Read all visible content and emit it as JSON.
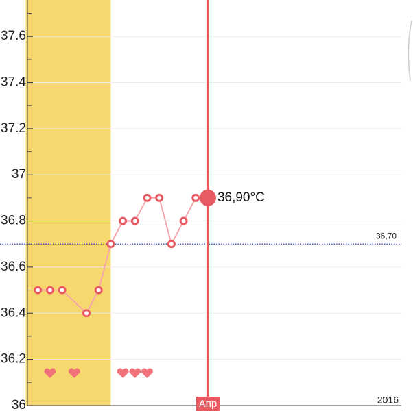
{
  "chart_data": {
    "type": "line",
    "x": [
      1,
      2,
      3,
      5,
      6,
      7,
      8,
      9,
      10,
      11,
      12,
      13,
      14,
      15
    ],
    "values": [
      36.5,
      36.5,
      36.5,
      36.4,
      36.5,
      36.7,
      36.8,
      36.8,
      36.9,
      36.9,
      36.7,
      36.8,
      36.9,
      36.9
    ],
    "color": "#e85a62",
    "line_color": "#f4a6ab",
    "xlim": [
      -2.12,
      31.9
    ],
    "ylim": [
      35.976,
      37.758
    ],
    "yticks": [
      36,
      36.2,
      36.4,
      36.6,
      36.8,
      37,
      37.2,
      37.4,
      37.6
    ],
    "minor_yticks": [
      36.1,
      36.3,
      36.5,
      36.7,
      36.9,
      37.1,
      37.3,
      37.5,
      37.7
    ],
    "grid": true,
    "highlight_x": [
      0,
      7
    ],
    "highlight_color": "#f7d86e",
    "reference_line": {
      "value": 36.7,
      "label": "36,70",
      "color": "#2a35b8"
    },
    "selected": {
      "x": 15,
      "label": "36,90°C",
      "month_label": "Апр"
    },
    "hearts_x": [
      2,
      4,
      8,
      9,
      10
    ],
    "year_label": "2016"
  }
}
